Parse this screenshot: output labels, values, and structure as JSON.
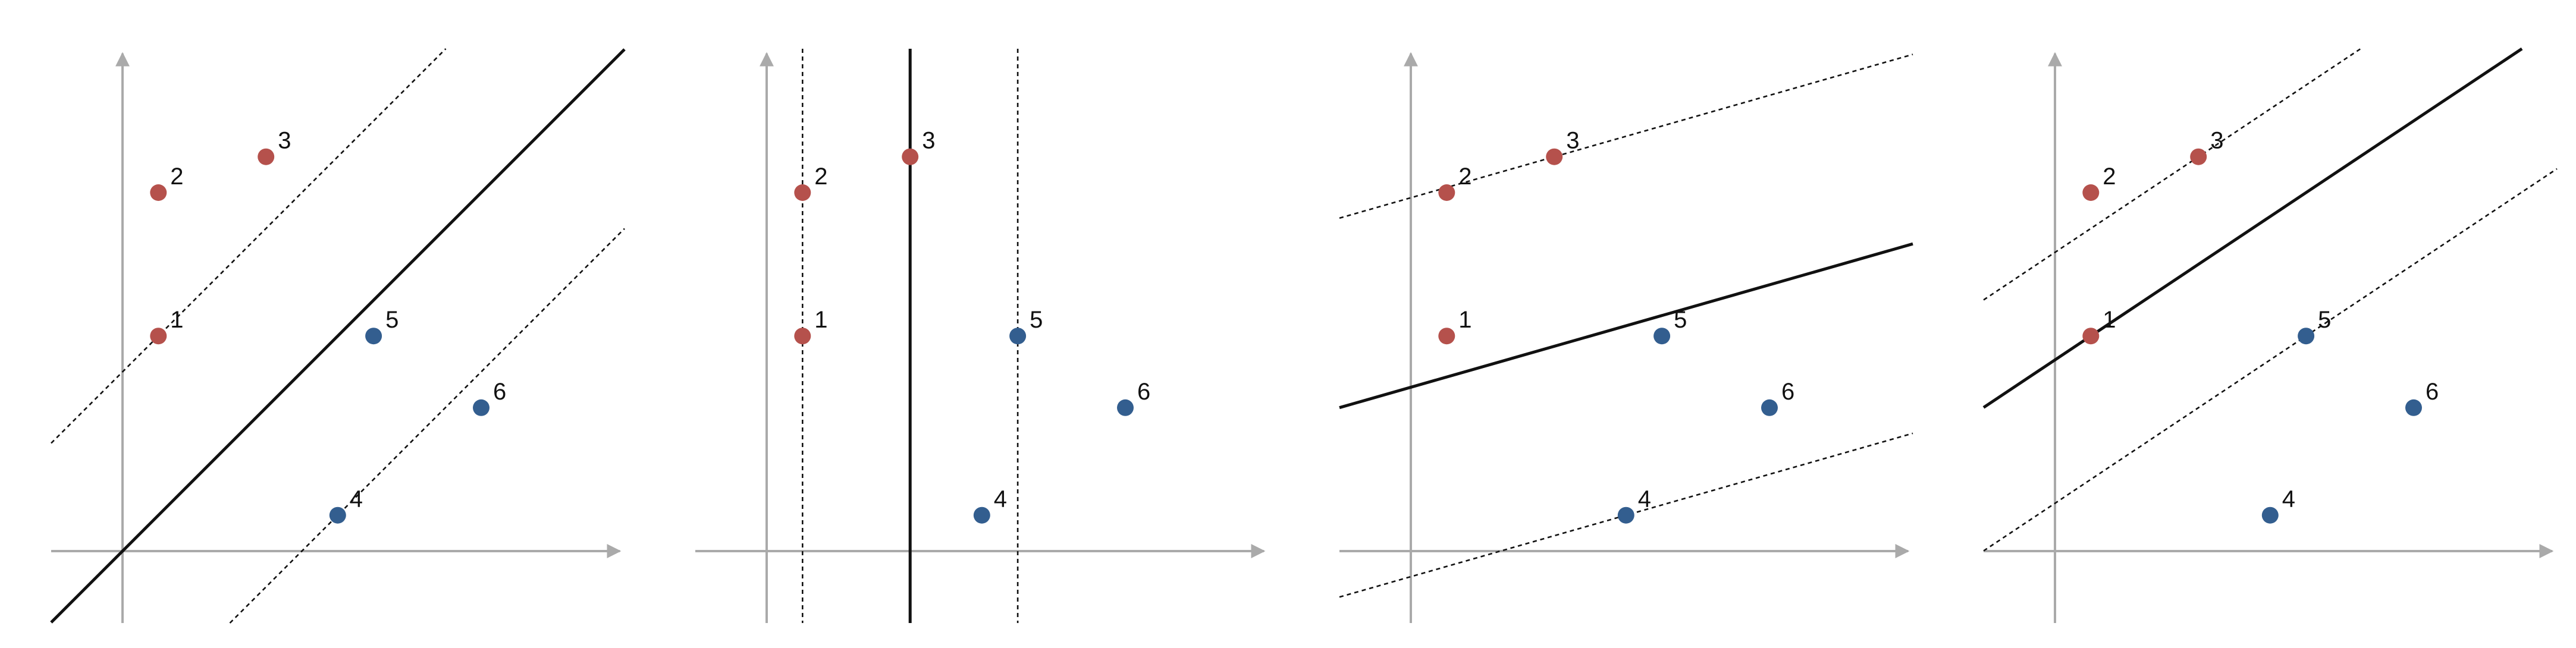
{
  "colors": {
    "axis": "#aaaaaa",
    "line": "#111111",
    "red_point": "#b5514c",
    "blue_point": "#335e8f",
    "background": "#ffffff"
  },
  "points": [
    {
      "label": "1",
      "x": 1,
      "y": 6,
      "class": "red"
    },
    {
      "label": "2",
      "x": 1,
      "y": 10,
      "class": "red"
    },
    {
      "label": "3",
      "x": 4,
      "y": 11,
      "class": "red"
    },
    {
      "label": "4",
      "x": 6,
      "y": 1,
      "class": "blue"
    },
    {
      "label": "5",
      "x": 7,
      "y": 6,
      "class": "blue"
    },
    {
      "label": "6",
      "x": 10,
      "y": 4,
      "class": "blue"
    }
  ],
  "panels": [
    {
      "name": "panel-1",
      "boundary": {
        "kind": "slope",
        "m": 1,
        "b": 0
      },
      "margins": [
        {
          "kind": "slope",
          "m": 1,
          "b": 5
        },
        {
          "kind": "slope",
          "m": 1,
          "b": -5
        }
      ]
    },
    {
      "name": "panel-2",
      "boundary": {
        "kind": "vertical",
        "x": 4
      },
      "margins": [
        {
          "kind": "vertical",
          "x": 1
        },
        {
          "kind": "vertical",
          "x": 7
        }
      ]
    },
    {
      "name": "panel-3",
      "boundary": {
        "kind": "slope",
        "m": 0.2857,
        "b": 4.571
      },
      "margins": [
        {
          "kind": "slope",
          "m": 0.2857,
          "b": 9.857
        },
        {
          "kind": "slope",
          "m": 0.2857,
          "b": -0.714
        }
      ]
    },
    {
      "name": "panel-4",
      "boundary": {
        "kind": "slope",
        "m": 0.6667,
        "b": 5.333
      },
      "margins": [
        {
          "kind": "slope",
          "m": 0.6667,
          "b": 8.333
        },
        {
          "kind": "slope",
          "m": 0.6667,
          "b": 1.333
        }
      ]
    }
  ]
}
